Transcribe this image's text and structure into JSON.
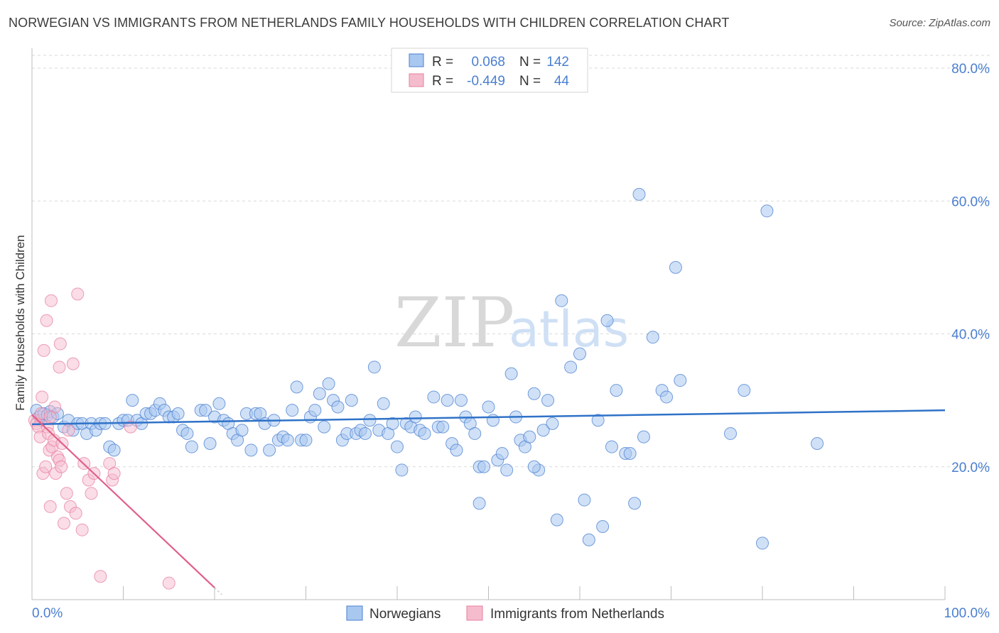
{
  "title": "NORWEGIAN VS IMMIGRANTS FROM NETHERLANDS FAMILY HOUSEHOLDS WITH CHILDREN CORRELATION CHART",
  "source": "Source: ZipAtlas.com",
  "colors": {
    "blue": "#4a7fd0",
    "blue_fill": "#a9c8f0",
    "blue_line": "#2f72c8",
    "pink": "#e77fa0",
    "pink_fill": "#f5bccd",
    "pink_line": "#e0608a",
    "grid": "#d9d9d9"
  },
  "legend": {
    "r_label": "R =",
    "n_label": "N =",
    "rows": [
      {
        "r": "0.068",
        "n": "142"
      },
      {
        "r": "-0.449",
        "n": "44"
      }
    ]
  },
  "chart_data": {
    "type": "scatter",
    "title": "NORWEGIAN VS IMMIGRANTS FROM NETHERLANDS FAMILY HOUSEHOLDS WITH CHILDREN CORRELATION CHART",
    "xlabel": "",
    "ylabel": "Family Households with Children",
    "xlim": [
      0,
      100
    ],
    "ylim": [
      0,
      85
    ],
    "x_tick_labels": [
      "0.0%",
      "100.0%"
    ],
    "y_ticks": [
      20,
      40,
      60,
      80
    ],
    "y_tick_labels": [
      "20.0%",
      "40.0%",
      "60.0%",
      "80.0%"
    ],
    "grid": true,
    "watermark": {
      "zip": "ZIP",
      "atlas": "atlas"
    },
    "series": [
      {
        "name": "Norwegians",
        "points": [
          [
            0.5,
            28.5
          ],
          [
            0.8,
            27.5
          ],
          [
            1.0,
            27.0
          ],
          [
            1.3,
            28.0
          ],
          [
            1.7,
            27.8
          ],
          [
            2.0,
            28.3
          ],
          [
            2.3,
            27.5
          ],
          [
            2.8,
            28.0
          ],
          [
            3.5,
            26.0
          ],
          [
            4.0,
            27.0
          ],
          [
            4.5,
            25.5
          ],
          [
            5.0,
            26.5
          ],
          [
            5.5,
            26.5
          ],
          [
            6.0,
            25.0
          ],
          [
            6.5,
            26.5
          ],
          [
            7.0,
            25.5
          ],
          [
            7.5,
            26.5
          ],
          [
            8.0,
            26.5
          ],
          [
            8.5,
            23.0
          ],
          [
            9.0,
            22.5
          ],
          [
            9.5,
            26.5
          ],
          [
            10.0,
            27.0
          ],
          [
            10.5,
            27.0
          ],
          [
            11.0,
            30.0
          ],
          [
            11.5,
            27.0
          ],
          [
            12.0,
            26.5
          ],
          [
            12.5,
            28.0
          ],
          [
            13.0,
            28.0
          ],
          [
            13.5,
            28.5
          ],
          [
            14.0,
            29.5
          ],
          [
            14.5,
            28.5
          ],
          [
            15.0,
            27.5
          ],
          [
            15.5,
            27.5
          ],
          [
            16.0,
            28.0
          ],
          [
            16.5,
            25.5
          ],
          [
            17.0,
            25.0
          ],
          [
            17.5,
            23.0
          ],
          [
            18.5,
            28.5
          ],
          [
            19.0,
            28.5
          ],
          [
            19.5,
            23.5
          ],
          [
            20.0,
            27.5
          ],
          [
            20.5,
            29.5
          ],
          [
            21.0,
            27.0
          ],
          [
            21.5,
            26.5
          ],
          [
            22.0,
            25.0
          ],
          [
            22.5,
            24.0
          ],
          [
            23.0,
            25.5
          ],
          [
            23.5,
            28.0
          ],
          [
            24.0,
            22.5
          ],
          [
            24.5,
            28.0
          ],
          [
            25.0,
            28.0
          ],
          [
            25.5,
            26.5
          ],
          [
            26.0,
            22.5
          ],
          [
            26.5,
            27.0
          ],
          [
            27.0,
            24.0
          ],
          [
            27.5,
            24.5
          ],
          [
            28.0,
            24.0
          ],
          [
            28.5,
            28.5
          ],
          [
            29.0,
            32.0
          ],
          [
            29.5,
            24.0
          ],
          [
            30.0,
            24.0
          ],
          [
            30.5,
            27.5
          ],
          [
            31.0,
            28.5
          ],
          [
            31.5,
            31.0
          ],
          [
            32.0,
            26.0
          ],
          [
            32.5,
            32.5
          ],
          [
            33.0,
            30.0
          ],
          [
            33.5,
            29.0
          ],
          [
            34.0,
            24.0
          ],
          [
            34.5,
            25.0
          ],
          [
            35.0,
            30.0
          ],
          [
            35.5,
            25.0
          ],
          [
            36.0,
            25.5
          ],
          [
            36.5,
            25.0
          ],
          [
            37.0,
            27.0
          ],
          [
            37.5,
            35.0
          ],
          [
            38.0,
            25.5
          ],
          [
            38.5,
            29.5
          ],
          [
            39.0,
            25.0
          ],
          [
            39.5,
            26.5
          ],
          [
            40.0,
            23.0
          ],
          [
            40.5,
            19.5
          ],
          [
            41.0,
            26.5
          ],
          [
            41.5,
            26.0
          ],
          [
            42.0,
            27.5
          ],
          [
            42.5,
            25.5
          ],
          [
            43.0,
            25.0
          ],
          [
            44.0,
            30.5
          ],
          [
            44.5,
            26.0
          ],
          [
            45.0,
            26.0
          ],
          [
            45.5,
            30.0
          ],
          [
            46.0,
            23.5
          ],
          [
            46.5,
            22.5
          ],
          [
            47.0,
            30.0
          ],
          [
            47.5,
            27.5
          ],
          [
            48.0,
            26.5
          ],
          [
            48.5,
            25.0
          ],
          [
            49.0,
            20.0
          ],
          [
            49.5,
            20.0
          ],
          [
            50.0,
            29.0
          ],
          [
            50.5,
            27.0
          ],
          [
            51.0,
            21.0
          ],
          [
            51.5,
            22.0
          ],
          [
            52.0,
            19.5
          ],
          [
            52.5,
            34.0
          ],
          [
            53.0,
            27.5
          ],
          [
            53.5,
            24.0
          ],
          [
            54.0,
            23.0
          ],
          [
            54.5,
            24.5
          ],
          [
            55.0,
            31.0
          ],
          [
            55.5,
            19.5
          ],
          [
            56.0,
            25.5
          ],
          [
            56.5,
            30.0
          ],
          [
            57.0,
            26.5
          ],
          [
            57.5,
            12.0
          ],
          [
            58.0,
            45.0
          ],
          [
            59.0,
            35.0
          ],
          [
            60.0,
            37.0
          ],
          [
            60.5,
            15.0
          ],
          [
            61.0,
            9.0
          ],
          [
            62.0,
            27.0
          ],
          [
            62.5,
            11.0
          ],
          [
            63.0,
            42.0
          ],
          [
            63.5,
            23.0
          ],
          [
            64.0,
            31.5
          ],
          [
            65.0,
            22.0
          ],
          [
            65.5,
            22.0
          ],
          [
            66.0,
            14.5
          ],
          [
            66.5,
            61.0
          ],
          [
            67.0,
            24.5
          ],
          [
            68.0,
            39.5
          ],
          [
            69.0,
            31.5
          ],
          [
            69.5,
            30.5
          ],
          [
            70.5,
            50.0
          ],
          [
            71.0,
            33.0
          ],
          [
            76.5,
            25.0
          ],
          [
            78.0,
            31.5
          ],
          [
            80.0,
            8.5
          ],
          [
            80.5,
            58.5
          ],
          [
            86.0,
            23.5
          ],
          [
            49.0,
            14.5
          ],
          [
            55.0,
            20.0
          ]
        ]
      },
      {
        "name": "Immigrants from Netherlands",
        "points": [
          [
            0.3,
            27.0
          ],
          [
            0.5,
            26.5
          ],
          [
            0.7,
            26.0
          ],
          [
            0.9,
            24.5
          ],
          [
            1.0,
            28.0
          ],
          [
            1.1,
            30.5
          ],
          [
            1.2,
            19.0
          ],
          [
            1.3,
            37.5
          ],
          [
            1.5,
            20.0
          ],
          [
            1.6,
            42.0
          ],
          [
            1.7,
            26.0
          ],
          [
            1.8,
            25.0
          ],
          [
            1.9,
            22.5
          ],
          [
            2.0,
            14.0
          ],
          [
            2.1,
            45.0
          ],
          [
            2.2,
            23.0
          ],
          [
            2.4,
            24.0
          ],
          [
            2.5,
            29.0
          ],
          [
            2.6,
            19.0
          ],
          [
            2.8,
            21.5
          ],
          [
            3.0,
            21.0
          ],
          [
            3.0,
            35.0
          ],
          [
            3.1,
            38.5
          ],
          [
            3.2,
            20.0
          ],
          [
            3.3,
            23.5
          ],
          [
            3.5,
            11.5
          ],
          [
            3.8,
            16.0
          ],
          [
            4.0,
            25.5
          ],
          [
            4.2,
            14.0
          ],
          [
            4.5,
            35.5
          ],
          [
            4.8,
            13.0
          ],
          [
            5.0,
            46.0
          ],
          [
            5.5,
            10.5
          ],
          [
            5.7,
            20.5
          ],
          [
            6.2,
            18.0
          ],
          [
            6.5,
            16.0
          ],
          [
            6.8,
            19.0
          ],
          [
            7.5,
            3.5
          ],
          [
            8.5,
            20.5
          ],
          [
            8.8,
            18.0
          ],
          [
            9.0,
            19.0
          ],
          [
            10.8,
            26.0
          ],
          [
            15.0,
            2.5
          ],
          [
            2.0,
            27.5
          ]
        ]
      }
    ],
    "trend_lines": [
      {
        "series": "Norwegians",
        "x": [
          0,
          100
        ],
        "y": [
          26.4,
          28.5
        ]
      },
      {
        "series": "Immigrants from Netherlands",
        "x": [
          0,
          20
        ],
        "y": [
          27.8,
          1.8
        ]
      }
    ]
  }
}
